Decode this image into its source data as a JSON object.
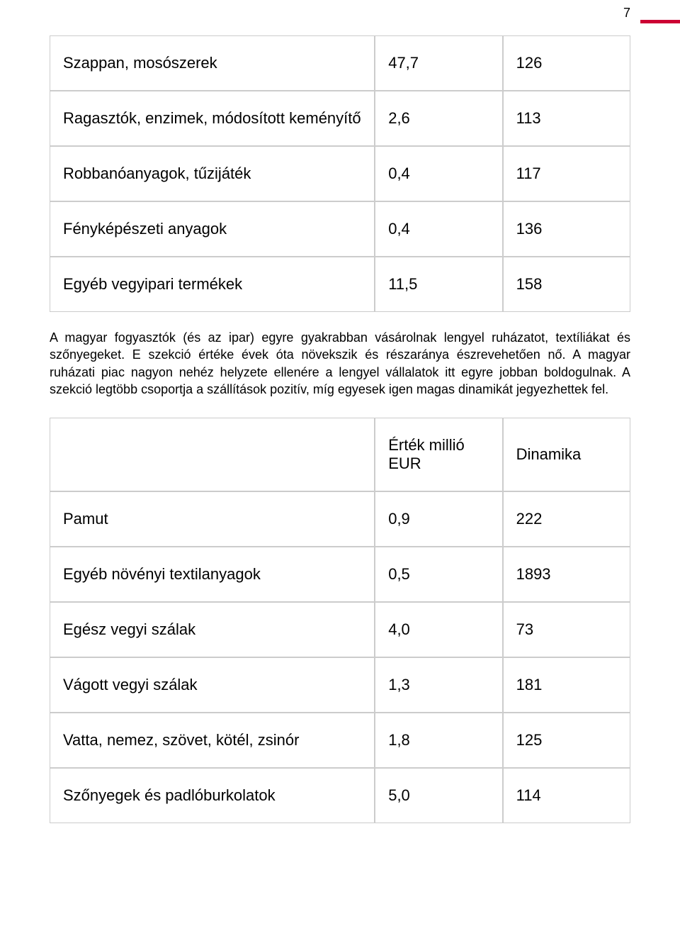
{
  "page_number": "7",
  "accent_color": "#cc0033",
  "border_color": "#cccccc",
  "text_color": "#000000",
  "font_size_table": 22,
  "font_size_paragraph": 18,
  "table1": {
    "rows": [
      {
        "label": "Szappan, mosószerek",
        "v1": "47,7",
        "v2": "126"
      },
      {
        "label": "Ragasztók, enzimek, módosított keményítő",
        "v1": "2,6",
        "v2": "113"
      },
      {
        "label": "Robbanóanyagok, tűzijáték",
        "v1": "0,4",
        "v2": "117"
      },
      {
        "label": "Fényképészeti anyagok",
        "v1": "0,4",
        "v2": "136"
      },
      {
        "label": "Egyéb vegyipari termékek",
        "v1": "11,5",
        "v2": "158"
      }
    ]
  },
  "paragraph_text": "A magyar fogyasztók (és az ipar) egyre gyakrabban vásárolnak lengyel ruházatot, textíliákat és szőnyegeket. E szekció értéke évek óta növekszik és részaránya észrevehetően nő. A magyar ruházati piac nagyon nehéz helyzete ellenére a lengyel vállalatok itt egyre jobban boldogulnak. A szekció legtöbb csoportja a szállítások pozitív, míg egyesek igen magas dinamikát jegyezhettek fel.",
  "table2": {
    "header": {
      "c1": "",
      "c2": "Érték millió EUR",
      "c3": "Dinamika"
    },
    "rows": [
      {
        "label": "Pamut",
        "v1": "0,9",
        "v2": "222"
      },
      {
        "label": "Egyéb növényi textilanyagok",
        "v1": "0,5",
        "v2": "1893"
      },
      {
        "label": "Egész vegyi szálak",
        "v1": "4,0",
        "v2": "73"
      },
      {
        "label": "Vágott vegyi szálak",
        "v1": "1,3",
        "v2": "181"
      },
      {
        "label": "Vatta, nemez, szövet, kötél, zsinór",
        "v1": "1,8",
        "v2": "125"
      },
      {
        "label": "Szőnyegek és padlóburkolatok",
        "v1": "5,0",
        "v2": "114"
      }
    ]
  }
}
